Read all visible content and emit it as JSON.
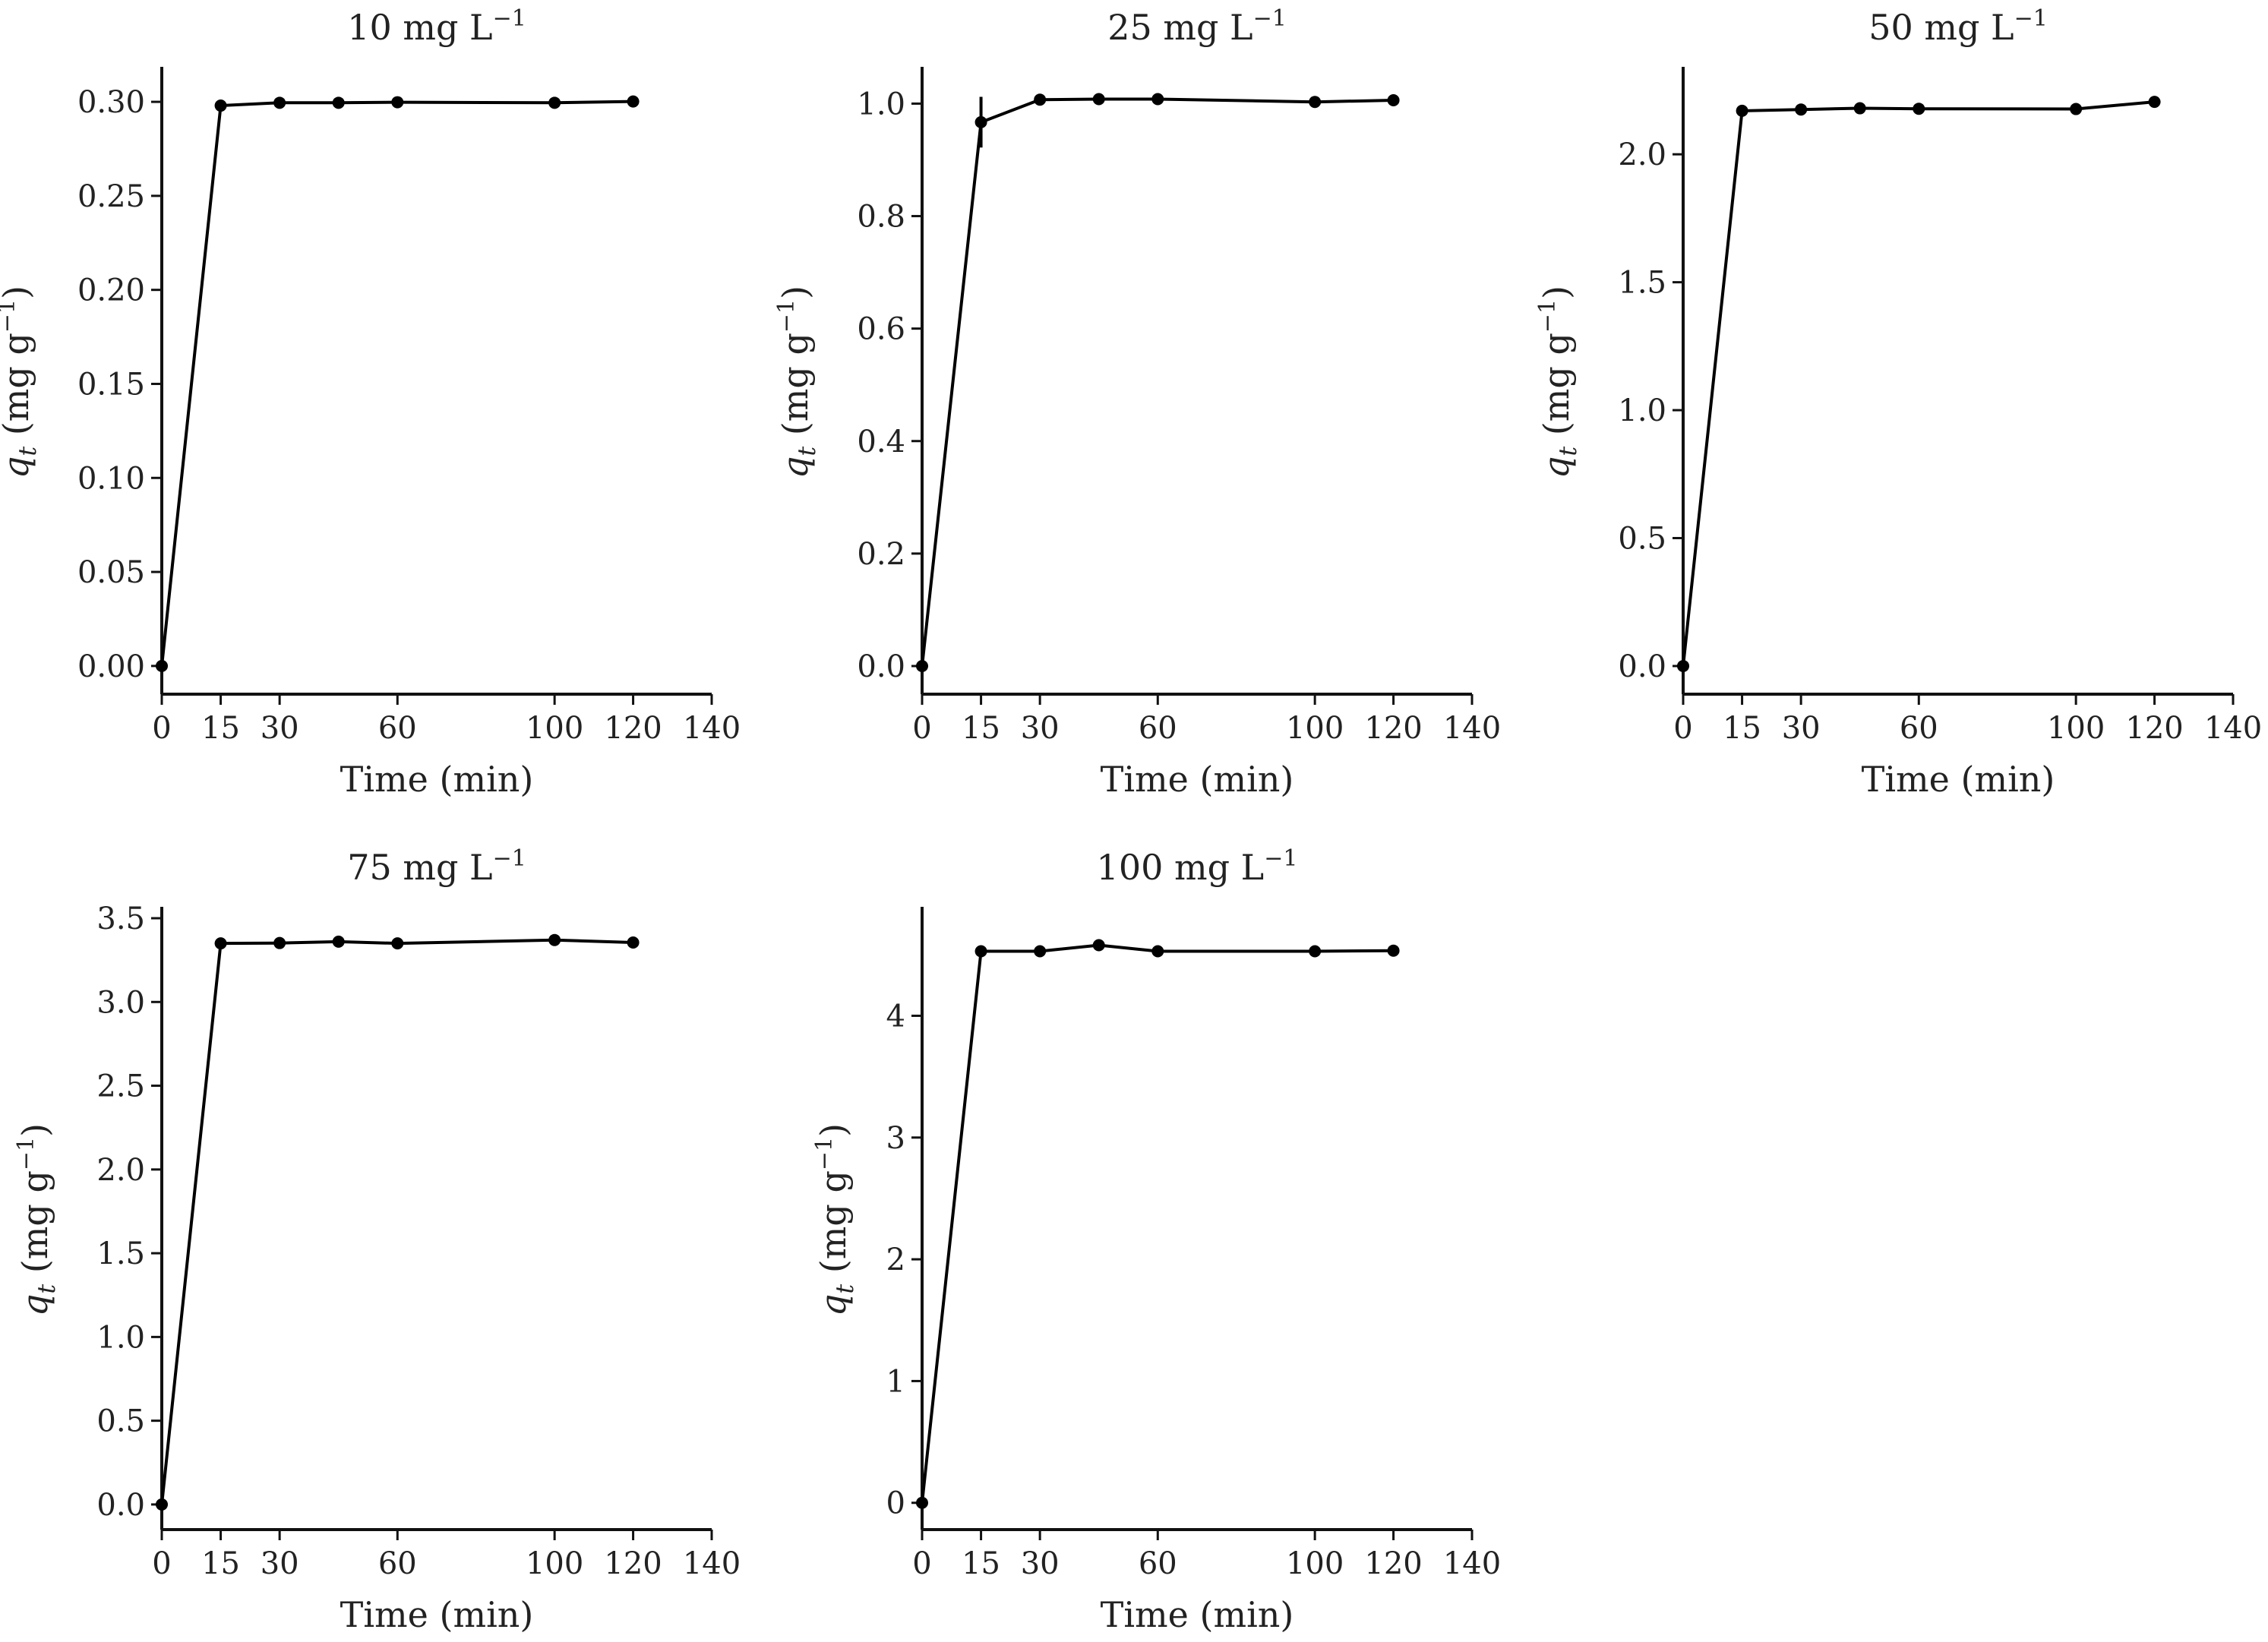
{
  "chart_data": [
    {
      "type": "line",
      "title": "10 mg L",
      "title_sup": "−1",
      "xlabel": "Time (min)",
      "ylabel_symbol": "q",
      "ylabel_sub": "t",
      "ylabel_unit": " (mg g",
      "ylabel_sup": "−1",
      "ylabel_close": ")",
      "xlim": [
        0,
        140
      ],
      "ylim": [
        -0.015,
        0.317
      ],
      "xticks": [
        0,
        15,
        30,
        60,
        100,
        120,
        140
      ],
      "xtick_labels": [
        "0",
        "15",
        "30",
        "60",
        "100",
        "120",
        "140"
      ],
      "yticks": [
        0,
        0.05,
        0.1,
        0.15,
        0.2,
        0.25,
        0.3
      ],
      "ytick_labels": [
        "0.00",
        "0.05",
        "0.10",
        "0.15",
        "0.20",
        "0.25",
        "0.30"
      ],
      "grid": false,
      "series": [
        {
          "x": [
            0,
            15,
            30,
            45,
            60,
            100,
            120
          ],
          "y": [
            0.0,
            0.298,
            0.2995,
            0.2995,
            0.2998,
            0.2995,
            0.3002
          ],
          "err": [
            0,
            0.001,
            0.001,
            0.001,
            0.001,
            0.001,
            0.001
          ]
        }
      ]
    },
    {
      "type": "line",
      "title": "25 mg L",
      "title_sup": "−1",
      "xlabel": "Time (min)",
      "ylabel_symbol": "q",
      "ylabel_sub": "t",
      "ylabel_unit": " (mg g",
      "ylabel_sup": "−1",
      "ylabel_close": ")",
      "xlim": [
        0,
        140
      ],
      "ylim": [
        -0.05,
        1.06
      ],
      "xticks": [
        0,
        15,
        30,
        60,
        100,
        120,
        140
      ],
      "xtick_labels": [
        "0",
        "15",
        "30",
        "60",
        "100",
        "120",
        "140"
      ],
      "yticks": [
        0,
        0.2,
        0.4,
        0.6,
        0.8,
        1.0
      ],
      "ytick_labels": [
        "0.0",
        "0.2",
        "0.4",
        "0.6",
        "0.8",
        "1.0"
      ],
      "grid": false,
      "series": [
        {
          "x": [
            0,
            15,
            30,
            45,
            60,
            100,
            120
          ],
          "y": [
            0.0,
            0.967,
            1.007,
            1.008,
            1.008,
            1.003,
            1.006
          ],
          "err": [
            0,
            0.045,
            0.004,
            0.003,
            0.003,
            0.003,
            0.003
          ]
        }
      ]
    },
    {
      "type": "line",
      "title": "50 mg L",
      "title_sup": "−1",
      "xlabel": "Time (min)",
      "ylabel_symbol": "q",
      "ylabel_sub": "t",
      "ylabel_unit": " (mg g",
      "ylabel_sup": "−1",
      "ylabel_close": ")",
      "xlim": [
        0,
        140
      ],
      "ylim": [
        -0.11,
        2.33
      ],
      "xticks": [
        0,
        15,
        30,
        60,
        100,
        120,
        140
      ],
      "xtick_labels": [
        "0",
        "15",
        "30",
        "60",
        "100",
        "120",
        "140"
      ],
      "yticks": [
        0,
        0.5,
        1.0,
        1.5,
        2.0
      ],
      "ytick_labels": [
        "0.0",
        "0.5",
        "1.0",
        "1.5",
        "2.0"
      ],
      "grid": false,
      "series": [
        {
          "x": [
            0,
            15,
            30,
            45,
            60,
            100,
            120
          ],
          "y": [
            0.0,
            2.17,
            2.175,
            2.18,
            2.178,
            2.177,
            2.205
          ],
          "err": [
            0,
            0.005,
            0.005,
            0.005,
            0.005,
            0.005,
            0.02
          ]
        }
      ]
    },
    {
      "type": "line",
      "title": "75 mg L",
      "title_sup": "−1",
      "xlabel": "Time (min)",
      "ylabel_symbol": "q",
      "ylabel_sub": "t",
      "ylabel_unit": " (mg g",
      "ylabel_sup": "−1",
      "ylabel_close": ")",
      "xlim": [
        0,
        140
      ],
      "ylim": [
        -0.15,
        3.55
      ],
      "xticks": [
        0,
        15,
        30,
        60,
        100,
        120,
        140
      ],
      "xtick_labels": [
        "0",
        "15",
        "30",
        "60",
        "100",
        "120",
        "140"
      ],
      "yticks": [
        0,
        0.5,
        1.0,
        1.5,
        2.0,
        2.5,
        3.0,
        3.5
      ],
      "ytick_labels": [
        "0.0",
        "0.5",
        "1.0",
        "1.5",
        "2.0",
        "2.5",
        "3.0",
        "3.5"
      ],
      "grid": false,
      "series": [
        {
          "x": [
            0,
            15,
            30,
            45,
            60,
            100,
            120
          ],
          "y": [
            0.0,
            3.35,
            3.352,
            3.36,
            3.35,
            3.37,
            3.355
          ],
          "err": [
            0,
            0.005,
            0.005,
            0.005,
            0.005,
            0.005,
            0.005
          ]
        }
      ]
    },
    {
      "type": "line",
      "title": "100 mg L",
      "title_sup": "−1",
      "xlabel": "Time (min)",
      "ylabel_symbol": "q",
      "ylabel_sub": "t",
      "ylabel_unit": " (mg g",
      "ylabel_sup": "−1",
      "ylabel_close": ")",
      "xlim": [
        0,
        140
      ],
      "ylim": [
        -0.22,
        4.87
      ],
      "xticks": [
        0,
        15,
        30,
        60,
        100,
        120,
        140
      ],
      "xtick_labels": [
        "0",
        "15",
        "30",
        "60",
        "100",
        "120",
        "140"
      ],
      "yticks": [
        0,
        1,
        2,
        3,
        4
      ],
      "ytick_labels": [
        "0",
        "1",
        "2",
        "3",
        "4"
      ],
      "grid": false,
      "series": [
        {
          "x": [
            0,
            15,
            30,
            45,
            60,
            100,
            120
          ],
          "y": [
            0.0,
            4.53,
            4.53,
            4.58,
            4.53,
            4.53,
            4.535
          ],
          "err": [
            0,
            0.01,
            0.01,
            0.01,
            0.01,
            0.01,
            0.01
          ]
        }
      ]
    }
  ]
}
